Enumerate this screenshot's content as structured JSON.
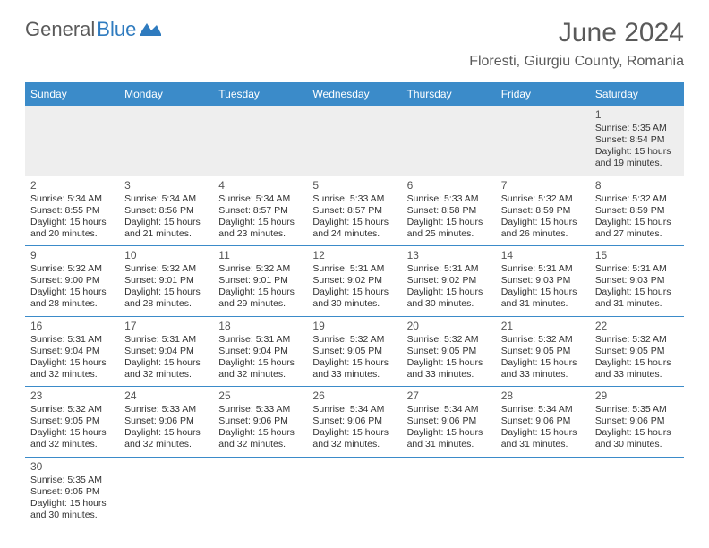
{
  "logo": {
    "text1": "General",
    "text2": "Blue"
  },
  "header": {
    "month_title": "June 2024",
    "location": "Floresti, Giurgiu County, Romania"
  },
  "colors": {
    "header_bg": "#3b8bc9",
    "header_text": "#ffffff",
    "cell_border": "#3b8bc9",
    "first_row_bg": "#eeeeee",
    "text": "#333333",
    "title_text": "#5a5a5a"
  },
  "weekdays": [
    "Sunday",
    "Monday",
    "Tuesday",
    "Wednesday",
    "Thursday",
    "Friday",
    "Saturday"
  ],
  "weeks": [
    [
      null,
      null,
      null,
      null,
      null,
      null,
      {
        "n": "1",
        "sr": "Sunrise: 5:35 AM",
        "ss": "Sunset: 8:54 PM",
        "d1": "Daylight: 15 hours",
        "d2": "and 19 minutes."
      }
    ],
    [
      {
        "n": "2",
        "sr": "Sunrise: 5:34 AM",
        "ss": "Sunset: 8:55 PM",
        "d1": "Daylight: 15 hours",
        "d2": "and 20 minutes."
      },
      {
        "n": "3",
        "sr": "Sunrise: 5:34 AM",
        "ss": "Sunset: 8:56 PM",
        "d1": "Daylight: 15 hours",
        "d2": "and 21 minutes."
      },
      {
        "n": "4",
        "sr": "Sunrise: 5:34 AM",
        "ss": "Sunset: 8:57 PM",
        "d1": "Daylight: 15 hours",
        "d2": "and 23 minutes."
      },
      {
        "n": "5",
        "sr": "Sunrise: 5:33 AM",
        "ss": "Sunset: 8:57 PM",
        "d1": "Daylight: 15 hours",
        "d2": "and 24 minutes."
      },
      {
        "n": "6",
        "sr": "Sunrise: 5:33 AM",
        "ss": "Sunset: 8:58 PM",
        "d1": "Daylight: 15 hours",
        "d2": "and 25 minutes."
      },
      {
        "n": "7",
        "sr": "Sunrise: 5:32 AM",
        "ss": "Sunset: 8:59 PM",
        "d1": "Daylight: 15 hours",
        "d2": "and 26 minutes."
      },
      {
        "n": "8",
        "sr": "Sunrise: 5:32 AM",
        "ss": "Sunset: 8:59 PM",
        "d1": "Daylight: 15 hours",
        "d2": "and 27 minutes."
      }
    ],
    [
      {
        "n": "9",
        "sr": "Sunrise: 5:32 AM",
        "ss": "Sunset: 9:00 PM",
        "d1": "Daylight: 15 hours",
        "d2": "and 28 minutes."
      },
      {
        "n": "10",
        "sr": "Sunrise: 5:32 AM",
        "ss": "Sunset: 9:01 PM",
        "d1": "Daylight: 15 hours",
        "d2": "and 28 minutes."
      },
      {
        "n": "11",
        "sr": "Sunrise: 5:32 AM",
        "ss": "Sunset: 9:01 PM",
        "d1": "Daylight: 15 hours",
        "d2": "and 29 minutes."
      },
      {
        "n": "12",
        "sr": "Sunrise: 5:31 AM",
        "ss": "Sunset: 9:02 PM",
        "d1": "Daylight: 15 hours",
        "d2": "and 30 minutes."
      },
      {
        "n": "13",
        "sr": "Sunrise: 5:31 AM",
        "ss": "Sunset: 9:02 PM",
        "d1": "Daylight: 15 hours",
        "d2": "and 30 minutes."
      },
      {
        "n": "14",
        "sr": "Sunrise: 5:31 AM",
        "ss": "Sunset: 9:03 PM",
        "d1": "Daylight: 15 hours",
        "d2": "and 31 minutes."
      },
      {
        "n": "15",
        "sr": "Sunrise: 5:31 AM",
        "ss": "Sunset: 9:03 PM",
        "d1": "Daylight: 15 hours",
        "d2": "and 31 minutes."
      }
    ],
    [
      {
        "n": "16",
        "sr": "Sunrise: 5:31 AM",
        "ss": "Sunset: 9:04 PM",
        "d1": "Daylight: 15 hours",
        "d2": "and 32 minutes."
      },
      {
        "n": "17",
        "sr": "Sunrise: 5:31 AM",
        "ss": "Sunset: 9:04 PM",
        "d1": "Daylight: 15 hours",
        "d2": "and 32 minutes."
      },
      {
        "n": "18",
        "sr": "Sunrise: 5:31 AM",
        "ss": "Sunset: 9:04 PM",
        "d1": "Daylight: 15 hours",
        "d2": "and 32 minutes."
      },
      {
        "n": "19",
        "sr": "Sunrise: 5:32 AM",
        "ss": "Sunset: 9:05 PM",
        "d1": "Daylight: 15 hours",
        "d2": "and 33 minutes."
      },
      {
        "n": "20",
        "sr": "Sunrise: 5:32 AM",
        "ss": "Sunset: 9:05 PM",
        "d1": "Daylight: 15 hours",
        "d2": "and 33 minutes."
      },
      {
        "n": "21",
        "sr": "Sunrise: 5:32 AM",
        "ss": "Sunset: 9:05 PM",
        "d1": "Daylight: 15 hours",
        "d2": "and 33 minutes."
      },
      {
        "n": "22",
        "sr": "Sunrise: 5:32 AM",
        "ss": "Sunset: 9:05 PM",
        "d1": "Daylight: 15 hours",
        "d2": "and 33 minutes."
      }
    ],
    [
      {
        "n": "23",
        "sr": "Sunrise: 5:32 AM",
        "ss": "Sunset: 9:05 PM",
        "d1": "Daylight: 15 hours",
        "d2": "and 32 minutes."
      },
      {
        "n": "24",
        "sr": "Sunrise: 5:33 AM",
        "ss": "Sunset: 9:06 PM",
        "d1": "Daylight: 15 hours",
        "d2": "and 32 minutes."
      },
      {
        "n": "25",
        "sr": "Sunrise: 5:33 AM",
        "ss": "Sunset: 9:06 PM",
        "d1": "Daylight: 15 hours",
        "d2": "and 32 minutes."
      },
      {
        "n": "26",
        "sr": "Sunrise: 5:34 AM",
        "ss": "Sunset: 9:06 PM",
        "d1": "Daylight: 15 hours",
        "d2": "and 32 minutes."
      },
      {
        "n": "27",
        "sr": "Sunrise: 5:34 AM",
        "ss": "Sunset: 9:06 PM",
        "d1": "Daylight: 15 hours",
        "d2": "and 31 minutes."
      },
      {
        "n": "28",
        "sr": "Sunrise: 5:34 AM",
        "ss": "Sunset: 9:06 PM",
        "d1": "Daylight: 15 hours",
        "d2": "and 31 minutes."
      },
      {
        "n": "29",
        "sr": "Sunrise: 5:35 AM",
        "ss": "Sunset: 9:06 PM",
        "d1": "Daylight: 15 hours",
        "d2": "and 30 minutes."
      }
    ],
    [
      {
        "n": "30",
        "sr": "Sunrise: 5:35 AM",
        "ss": "Sunset: 9:05 PM",
        "d1": "Daylight: 15 hours",
        "d2": "and 30 minutes."
      },
      null,
      null,
      null,
      null,
      null,
      null
    ]
  ]
}
